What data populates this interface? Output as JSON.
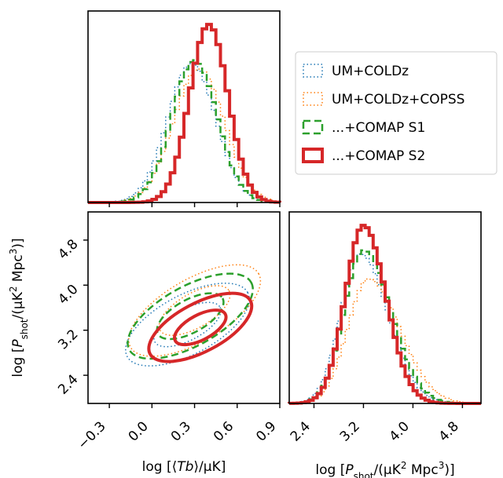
{
  "chart_data": {
    "type": "corner",
    "legend": {
      "placement": "upper-right",
      "entries": [
        {
          "label": "UM+COLDz",
          "color": "#1f77b4",
          "linestyle": "dotted",
          "width": 1.5
        },
        {
          "label": "UM+COLDz+COPSS",
          "color": "#ff7f0e",
          "linestyle": "dotted",
          "width": 1.5
        },
        {
          "label": "...+COMAP S1",
          "color": "#2ca02c",
          "linestyle": "dashed",
          "width": 2.5
        },
        {
          "label": "...+COMAP S2",
          "color": "#d62728",
          "linestyle": "solid",
          "width": 4
        }
      ]
    },
    "panels": {
      "top_hist": {
        "parameter": "log <Tb>/uK",
        "xlim": [
          -0.45,
          0.9
        ],
        "xticks": [
          -0.3,
          0.0,
          0.3,
          0.6,
          0.9
        ],
        "series": [
          {
            "name": "UM+COLDz",
            "mean": 0.28,
            "sigma": 0.17,
            "peak": 0.78
          },
          {
            "name": "UM+COLDz+COPSS",
            "mean": 0.33,
            "sigma": 0.18,
            "peak": 0.75
          },
          {
            "name": "...+COMAP S1",
            "mean": 0.3,
            "sigma": 0.16,
            "peak": 0.8
          },
          {
            "name": "...+COMAP S2",
            "mean": 0.4,
            "sigma": 0.135,
            "peak": 1.0
          }
        ]
      },
      "contour": {
        "xlabel": "log [⟨Tb⟩/μK]",
        "ylabel": "log [Pshot/(μK2 Mpc3)]",
        "xlim": [
          -0.45,
          0.9
        ],
        "ylim": [
          1.9,
          5.3
        ],
        "xtick_labels": [
          "−0.3",
          "0.0",
          "0.3",
          "0.6",
          "0.9"
        ],
        "xticks": [
          -0.3,
          0.0,
          0.3,
          0.6,
          0.9
        ],
        "ytick_labels": [
          "2.4",
          "3.2",
          "4.0",
          "4.8"
        ],
        "yticks": [
          2.4,
          3.2,
          4.0,
          4.8
        ],
        "series": [
          {
            "name": "UM+COLDz",
            "center": [
              0.25,
              3.3
            ],
            "rx": [
              0.26,
              0.48
            ],
            "ry": [
              0.2,
              0.38
            ],
            "angle_deg": 28
          },
          {
            "name": "UM+COLDz+COPSS",
            "center": [
              0.3,
              3.55
            ],
            "rx": [
              0.28,
              0.52
            ],
            "ry": [
              0.22,
              0.4
            ],
            "angle_deg": 30
          },
          {
            "name": "...+COMAP S1",
            "center": [
              0.27,
              3.45
            ],
            "rx": [
              0.26,
              0.49
            ],
            "ry": [
              0.21,
              0.38
            ],
            "angle_deg": 29
          },
          {
            "name": "...+COMAP S2",
            "center": [
              0.34,
              3.25
            ],
            "rx": [
              0.2,
              0.4
            ],
            "ry": [
              0.16,
              0.31
            ],
            "angle_deg": 28
          }
        ]
      },
      "right_hist": {
        "xlabel": "log [Pshot/(μK2 Mpc3)]",
        "xlim": [
          2.0,
          5.1
        ],
        "xtick_labels": [
          "2.4",
          "3.2",
          "4.0",
          "4.8"
        ],
        "xticks": [
          2.4,
          3.2,
          4.0,
          4.8
        ],
        "series": [
          {
            "name": "UM+COLDz",
            "mean": 3.15,
            "sigma": 0.38,
            "skew": 0.35,
            "peak": 0.84
          },
          {
            "name": "UM+COLDz+COPSS",
            "mean": 3.28,
            "sigma": 0.42,
            "skew": 0.4,
            "peak": 0.7
          },
          {
            "name": "...+COMAP S1",
            "mean": 3.2,
            "sigma": 0.38,
            "skew": 0.35,
            "peak": 0.86
          },
          {
            "name": "...+COMAP S2",
            "mean": 3.2,
            "sigma": 0.33,
            "skew": 0.2,
            "peak": 1.0
          }
        ]
      }
    }
  }
}
